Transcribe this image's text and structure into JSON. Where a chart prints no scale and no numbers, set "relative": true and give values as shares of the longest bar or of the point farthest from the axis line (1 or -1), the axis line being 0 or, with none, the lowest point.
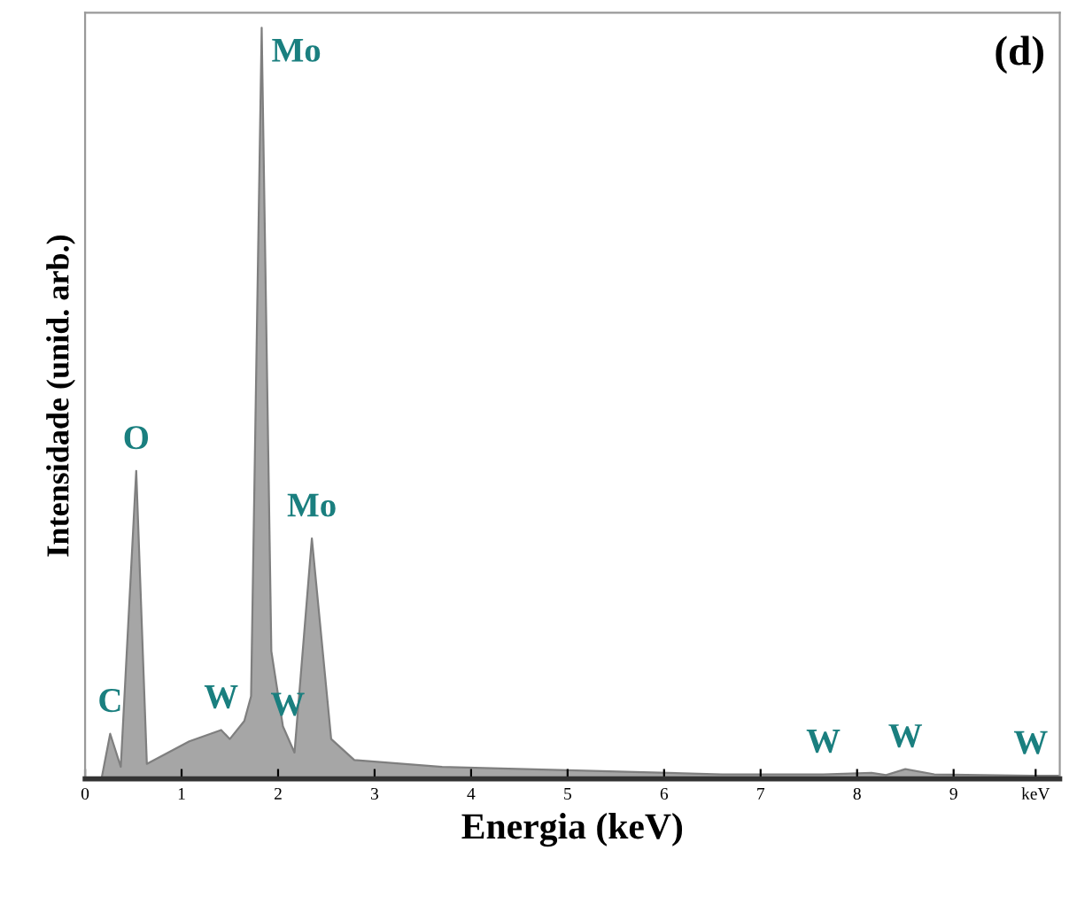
{
  "chart_data": {
    "type": "area",
    "relative": true,
    "xlabel": "Energia (keV)",
    "ylabel": "Intensidade (unid. arb.)",
    "x": [
      0.17,
      0.26,
      0.37,
      0.53,
      0.64,
      1.08,
      1.41,
      1.5,
      1.65,
      1.72,
      1.83,
      1.93,
      2.05,
      2.17,
      2.35,
      2.55,
      2.79,
      3.7,
      6.6,
      7.65,
      8.15,
      8.3,
      8.5,
      8.8,
      9.8,
      10.1
    ],
    "values": [
      0.0,
      0.06,
      0.016,
      0.41,
      0.02,
      0.05,
      0.065,
      0.053,
      0.077,
      0.11,
      1.0,
      0.17,
      0.07,
      0.035,
      0.32,
      0.053,
      0.025,
      0.016,
      0.006,
      0.006,
      0.008,
      0.005,
      0.013,
      0.006,
      0.004,
      0.004
    ],
    "color": "#a6a6a6",
    "xlim": [
      0,
      10.1
    ],
    "xticks": [
      0,
      1,
      2,
      3,
      4,
      5,
      6,
      7,
      8,
      9,
      {
        "value": 9.85,
        "label": "keV"
      }
    ],
    "annotations": [
      {
        "text": "C",
        "x": 0.26,
        "y": 0.06
      },
      {
        "text": "O",
        "x": 0.53,
        "y": 0.41
      },
      {
        "text": "W",
        "x": 1.41,
        "y": 0.065
      },
      {
        "text": "Mo",
        "x": 1.83,
        "y": 1.0
      },
      {
        "text": "W",
        "x": 2.1,
        "y": 0.055
      },
      {
        "text": "Mo",
        "x": 2.35,
        "y": 0.32
      },
      {
        "text": "W",
        "x": 7.65,
        "y": 0.006
      },
      {
        "text": "W",
        "x": 8.5,
        "y": 0.013
      },
      {
        "text": "W",
        "x": 9.8,
        "y": 0.004
      },
      "(d)"
    ]
  }
}
